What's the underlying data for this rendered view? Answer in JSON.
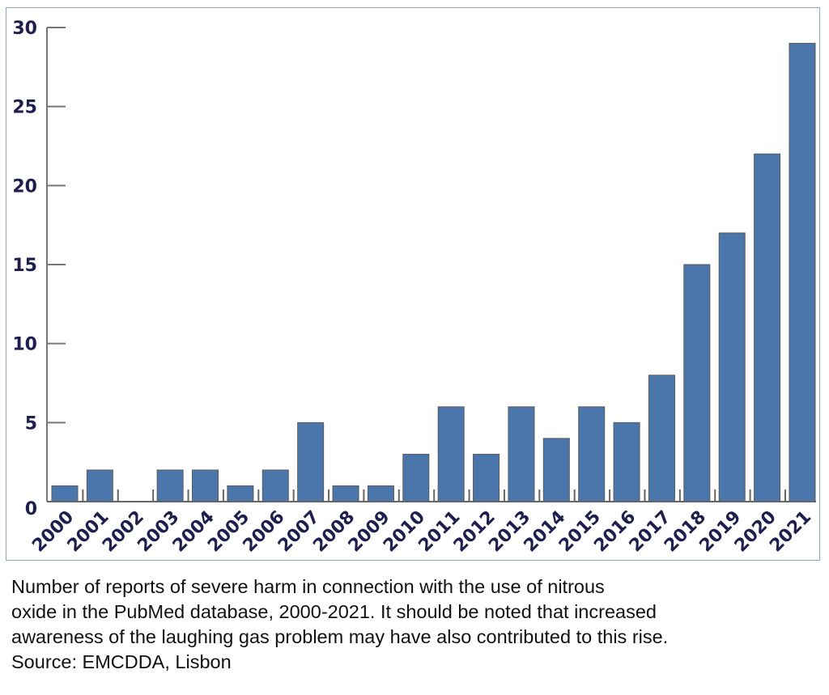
{
  "chart_data": {
    "type": "bar",
    "categories": [
      "2000",
      "2001",
      "2002",
      "2003",
      "2004",
      "2005",
      "2006",
      "2007",
      "2008",
      "2009",
      "2010",
      "2011",
      "2012",
      "2013",
      "2014",
      "2015",
      "2016",
      "2017",
      "2018",
      "2019",
      "2020",
      "2021"
    ],
    "values": [
      1,
      2,
      0,
      2,
      2,
      1,
      2,
      5,
      1,
      1,
      3,
      6,
      3,
      6,
      4,
      6,
      5,
      8,
      15,
      17,
      22,
      29
    ],
    "ylim": [
      0,
      30
    ],
    "yticks": [
      "0",
      "5",
      "10",
      "15",
      "20",
      "25",
      "30"
    ],
    "grid": false,
    "bar_color": "#4a76ab",
    "tick_color": "#1f1f4f"
  },
  "caption": {
    "lines": [
      "Number of reports of severe harm in connection with the use of nitrous",
      "oxide in the PubMed database, 2000-2021. It should be noted that increased",
      "awareness of the laughing gas problem may have also contributed to this rise.",
      "Source: EMCDDA, Lisbon"
    ]
  }
}
